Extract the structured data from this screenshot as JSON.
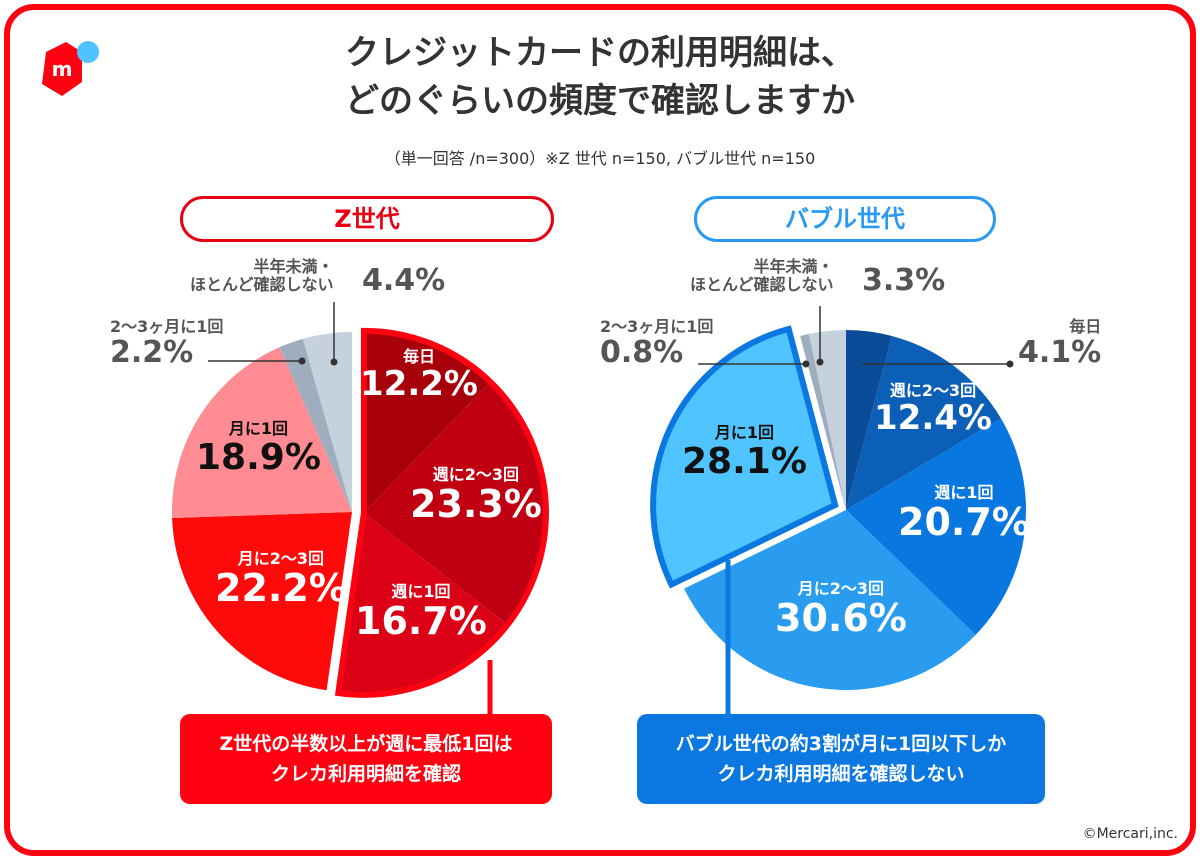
{
  "title_line1": "クレジットカードの利用明細は、",
  "title_line2": "どのぐらいの頻度で確認しますか",
  "subtitle": "（単一回答 /n=300）※Z 世代 n=150, バブル世代 n=150",
  "copyright": "©Mercari,inc.",
  "logo_letter": "m",
  "colors": {
    "brand_red": "#ff0211",
    "brand_blue": "#2a9af0"
  },
  "chart_data": [
    {
      "type": "pie",
      "title": "Z世代",
      "highlight": [
        "毎日",
        "週に2〜3回",
        "週に1回"
      ],
      "slices": [
        {
          "label": "毎日",
          "value": 12.2,
          "display": "12.2%",
          "color": "#a8000a"
        },
        {
          "label": "週に2〜3回",
          "value": 23.3,
          "display": "23.3%",
          "color": "#c00012"
        },
        {
          "label": "週に1回",
          "value": 16.7,
          "display": "16.7%",
          "color": "#dc0016"
        },
        {
          "label": "月に2〜3回",
          "value": 22.2,
          "display": "22.2%",
          "color": "#ff0a0a"
        },
        {
          "label": "月に1回",
          "value": 18.9,
          "display": "18.9%",
          "color": "#ff8c92"
        },
        {
          "label": "2〜3ヶ月に1回",
          "value": 2.2,
          "display": "2.2%",
          "color": "#9eaebf"
        },
        {
          "label_line1": "半年未満・",
          "label": "ほとんど確認しない",
          "value": 4.4,
          "display": "4.4%",
          "color": "#c5d1dd"
        }
      ],
      "callout": [
        "Z世代の半数以上が週に最低1回は",
        "クレカ利用明細を確認"
      ]
    },
    {
      "type": "pie",
      "title": "バブル世代",
      "highlight": [
        "月に1回"
      ],
      "slices": [
        {
          "label": "毎日",
          "value": 4.1,
          "display": "4.1%",
          "color": "#0a4c98"
        },
        {
          "label": "週に2〜3回",
          "value": 12.4,
          "display": "12.4%",
          "color": "#0b5fb6"
        },
        {
          "label": "週に1回",
          "value": 20.7,
          "display": "20.7%",
          "color": "#0878e0"
        },
        {
          "label": "月に2〜3回",
          "value": 30.6,
          "display": "30.6%",
          "color": "#2a9cf0"
        },
        {
          "label": "月に1回",
          "value": 28.1,
          "display": "28.1%",
          "color": "#50c4ff"
        },
        {
          "label": "2〜3ヶ月に1回",
          "value": 0.8,
          "display": "0.8%",
          "color": "#9eaebf"
        },
        {
          "label_line1": "半年未満・",
          "label": "ほとんど確認しない",
          "value": 3.3,
          "display": "3.3%",
          "color": "#c5d1dd"
        }
      ],
      "callout": [
        "バブル世代の約3割が月に1回以下しか",
        "クレカ利用明細を確認しない"
      ]
    }
  ]
}
